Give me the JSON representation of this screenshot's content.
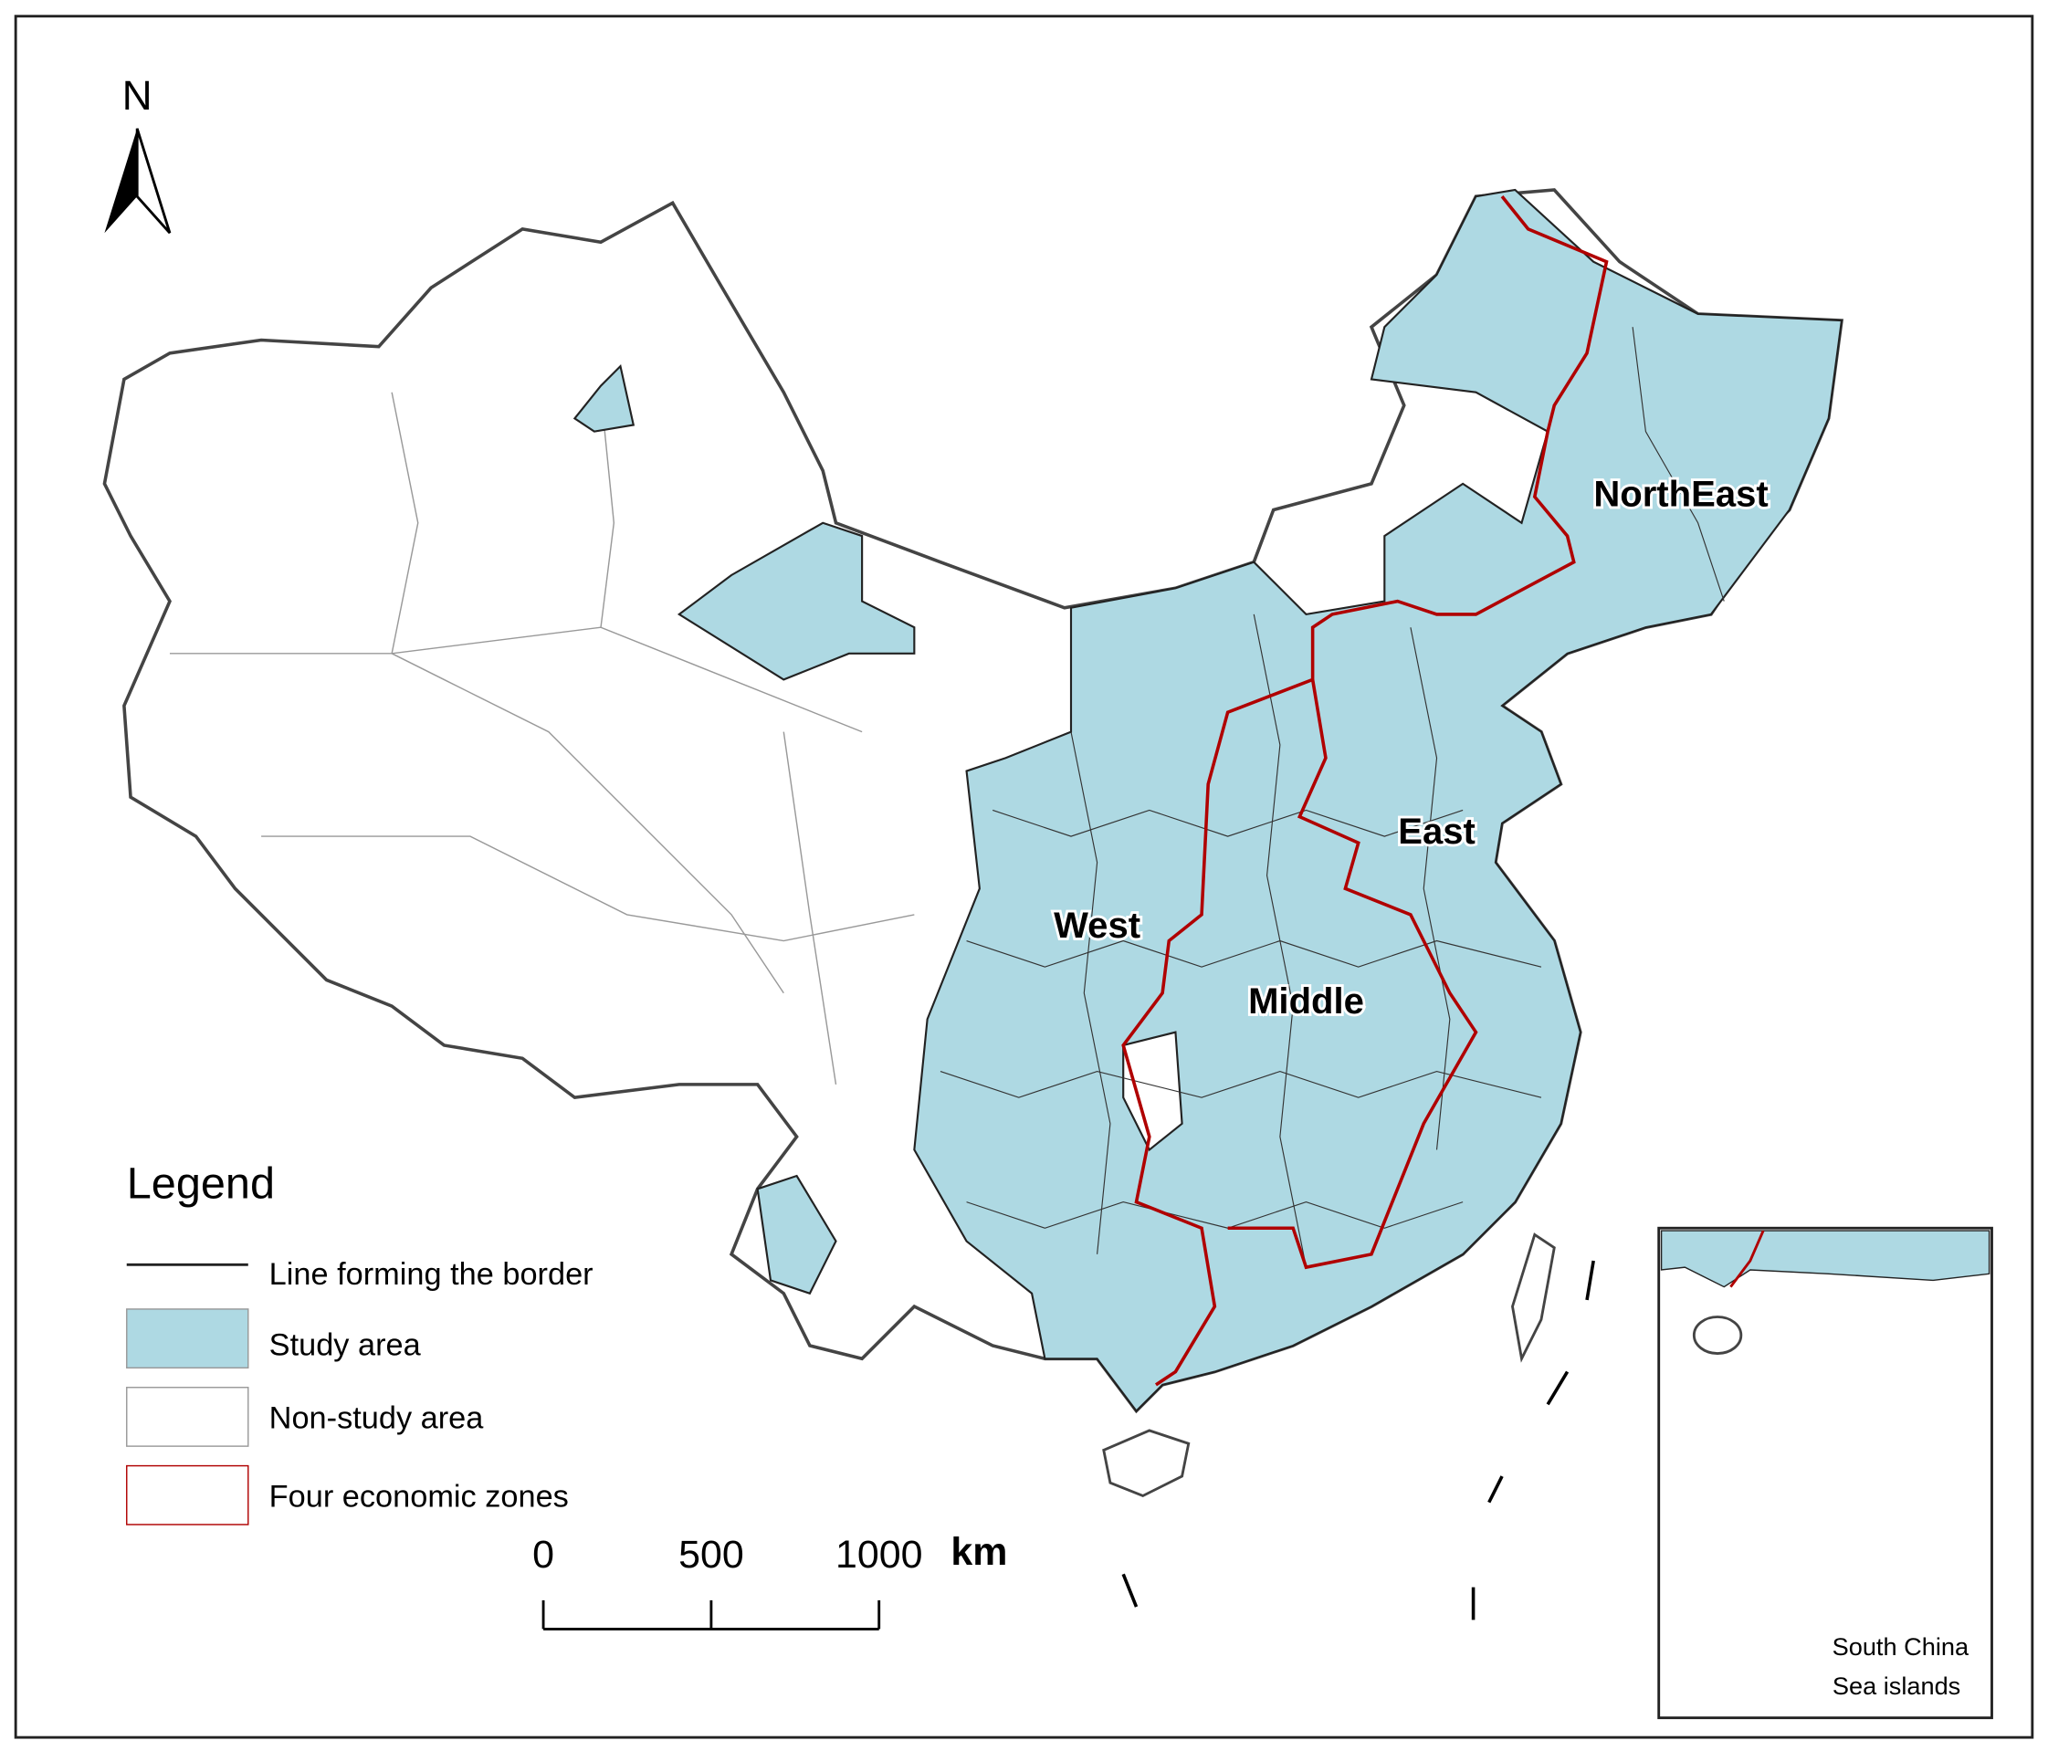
{
  "north_label": "N",
  "legend": {
    "title": "Legend",
    "items": [
      "Line forming the border",
      "Study area",
      "Non-study area",
      "Four economic zones"
    ]
  },
  "zones": [
    "NorthEast",
    "East",
    "West",
    "Middle"
  ],
  "scale_bar": {
    "ticks": [
      0,
      500,
      1000
    ],
    "unit": "km"
  },
  "inset": {
    "label_lines": [
      "South China",
      "Sea islands"
    ]
  }
}
